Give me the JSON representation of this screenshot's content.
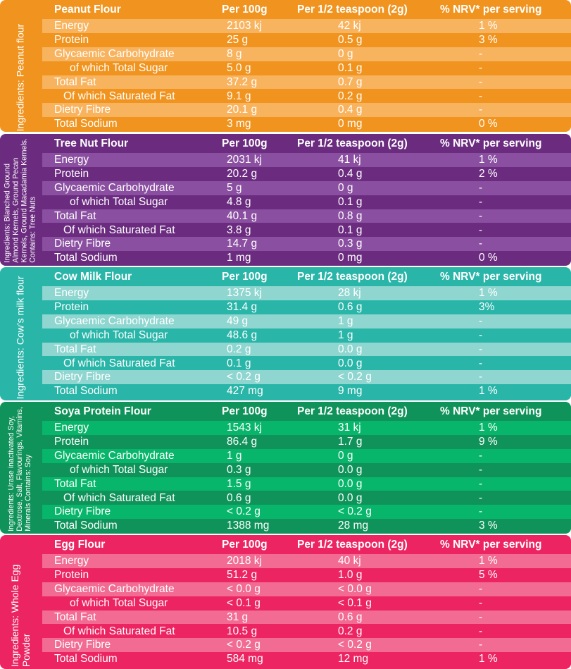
{
  "colors": {
    "peanut": {
      "bg": "#f0941f",
      "row_light": "#f8b35f",
      "row_dark": "#f0941f"
    },
    "treenut": {
      "bg": "#6b2c80",
      "row_light": "#8a4fa0",
      "row_dark": "#6b2c80"
    },
    "cow": {
      "bg": "#29b5a8",
      "row_light": "#8fd6d0",
      "row_dark": "#29b5a8"
    },
    "soya": {
      "bg": "#10935a",
      "row_light": "#07b66a",
      "row_dark": "#10935a"
    },
    "egg": {
      "bg": "#ec2462",
      "row_light": "#f26b93",
      "row_dark": "#ec2462"
    }
  },
  "columns": {
    "per100": "Per 100g",
    "perServing": "Per 1/2 teaspoon (2g)",
    "nrv": "% NRV* per serving"
  },
  "sections": [
    {
      "id": "peanut",
      "title": "Peanut Flour",
      "ingredients": "Ingredients: Peanut flour",
      "rows": [
        {
          "label": "Energy",
          "indent": 0,
          "v1": "2103 kj",
          "v2": "42 kj",
          "v3": "1 %"
        },
        {
          "label": "Protein",
          "indent": 0,
          "v1": "25 g",
          "v2": "0.5 g",
          "v3": "3 %"
        },
        {
          "label": "Glycaemic Carbohydrate",
          "indent": 0,
          "v1": "8 g",
          "v2": "0 g",
          "v3": "-"
        },
        {
          "label": "of which Total Sugar",
          "indent": 1,
          "v1": "5.0 g",
          "v2": "0.1 g",
          "v3": "-"
        },
        {
          "label": "Total Fat",
          "indent": 0,
          "v1": "37.2 g",
          "v2": "0.7 g",
          "v3": "-"
        },
        {
          "label": "Of which Saturated Fat",
          "indent": 2,
          "v1": "9.1 g",
          "v2": "0.2 g",
          "v3": "-"
        },
        {
          "label": "Dietry Fibre",
          "indent": 0,
          "v1": "20.1 g",
          "v2": "0.4 g",
          "v3": "-"
        },
        {
          "label": "Total Sodium",
          "indent": 0,
          "v1": "3 mg",
          "v2": "0 mg",
          "v3": "0 %"
        }
      ]
    },
    {
      "id": "treenut",
      "title": "Tree Nut Flour",
      "ingredients": "Ingredients: Blanched Ground Almond Kernels, Ground Pecan Kernels, Ground Macadamia Kernels. Contains: Tree Nuts",
      "rows": [
        {
          "label": "Energy",
          "indent": 0,
          "v1": "2031 kj",
          "v2": "41 kj",
          "v3": "1 %"
        },
        {
          "label": "Protein",
          "indent": 0,
          "v1": "20.2 g",
          "v2": "0.4 g",
          "v3": "2 %"
        },
        {
          "label": "Glycaemic Carbohydrate",
          "indent": 0,
          "v1": "5 g",
          "v2": "0 g",
          "v3": "-"
        },
        {
          "label": "of which Total Sugar",
          "indent": 1,
          "v1": "4.8 g",
          "v2": "0.1 g",
          "v3": "-"
        },
        {
          "label": "Total Fat",
          "indent": 0,
          "v1": "40.1 g",
          "v2": "0.8 g",
          "v3": "-"
        },
        {
          "label": "Of which Saturated Fat",
          "indent": 2,
          "v1": "3.8 g",
          "v2": "0.1 g",
          "v3": "-"
        },
        {
          "label": "Dietry Fibre",
          "indent": 0,
          "v1": "14.7 g",
          "v2": "0.3 g",
          "v3": "-"
        },
        {
          "label": "Total Sodium",
          "indent": 0,
          "v1": "1 mg",
          "v2": "0 mg",
          "v3": "0 %"
        }
      ]
    },
    {
      "id": "cow",
      "title": "Cow Milk Flour",
      "ingredients": "Ingredients: Cow’s milk flour",
      "rows": [
        {
          "label": "Energy",
          "indent": 0,
          "v1": "1375 kj",
          "v2": "28 kj",
          "v3": "1 %"
        },
        {
          "label": "Protein",
          "indent": 0,
          "v1": "31.4 g",
          "v2": "0.6 g",
          "v3": "3%"
        },
        {
          "label": "Glycaemic Carbohydrate",
          "indent": 0,
          "v1": "49 g",
          "v2": "1 g",
          "v3": "-"
        },
        {
          "label": "of which Total Sugar",
          "indent": 1,
          "v1": "48.6 g",
          "v2": "1 g",
          "v3": "-"
        },
        {
          "label": "Total Fat",
          "indent": 0,
          "v1": "0.2 g",
          "v2": "0.0 g",
          "v3": "-"
        },
        {
          "label": "Of which Saturated Fat",
          "indent": 2,
          "v1": "0.1 g",
          "v2": "0.0 g",
          "v3": "-"
        },
        {
          "label": "Dietry Fibre",
          "indent": 0,
          "v1": "< 0.2 g",
          "v2": "< 0.2 g",
          "v3": "-"
        },
        {
          "label": "Total Sodium",
          "indent": 0,
          "v1": "427 mg",
          "v2": "9 mg",
          "v3": "1 %"
        }
      ]
    },
    {
      "id": "soya",
      "title": "Soya Protein Flour",
      "ingredients": "Ingredients: Urase inactivated Soy, Dextrose, Salt, Flavourings, Vitamins, Minerals Contains: Soy",
      "rows": [
        {
          "label": "Energy",
          "indent": 0,
          "v1": "1543 kj",
          "v2": "31 kj",
          "v3": "1 %"
        },
        {
          "label": "Protein",
          "indent": 0,
          "v1": "86.4 g",
          "v2": "1.7 g",
          "v3": "9 %"
        },
        {
          "label": "Glycaemic Carbohydrate",
          "indent": 0,
          "v1": "1 g",
          "v2": "0 g",
          "v3": "-"
        },
        {
          "label": "of which Total Sugar",
          "indent": 1,
          "v1": "0.3 g",
          "v2": "0.0 g",
          "v3": "-"
        },
        {
          "label": "Total Fat",
          "indent": 0,
          "v1": "1.5 g",
          "v2": "0.0 g",
          "v3": "-"
        },
        {
          "label": "Of which Saturated Fat",
          "indent": 2,
          "v1": "0.6 g",
          "v2": "0.0 g",
          "v3": "-"
        },
        {
          "label": "Dietry Fibre",
          "indent": 0,
          "v1": "< 0.2 g",
          "v2": "< 0.2 g",
          "v3": "-"
        },
        {
          "label": "Total Sodium",
          "indent": 0,
          "v1": "1388 mg",
          "v2": "28 mg",
          "v3": "3 %"
        }
      ]
    },
    {
      "id": "egg",
      "title": "Egg Flour",
      "ingredients": "Ingredients: Whole Egg Powder",
      "rows": [
        {
          "label": "Energy",
          "indent": 0,
          "v1": "2018 kj",
          "v2": "40 kj",
          "v3": "1 %"
        },
        {
          "label": "Protein",
          "indent": 0,
          "v1": "51.2 g",
          "v2": "1.0 g",
          "v3": "5 %"
        },
        {
          "label": "Glycaemic Carbohydrate",
          "indent": 0,
          "v1": "< 0.0 g",
          "v2": "< 0.0 g",
          "v3": "-"
        },
        {
          "label": "of which Total Sugar",
          "indent": 1,
          "v1": "< 0.1 g",
          "v2": "< 0.1 g",
          "v3": "-"
        },
        {
          "label": "Total Fat",
          "indent": 0,
          "v1": "31 g",
          "v2": "0.6 g",
          "v3": "-"
        },
        {
          "label": "Of which Saturated Fat",
          "indent": 2,
          "v1": "10.5 g",
          "v2": "0.2 g",
          "v3": "-"
        },
        {
          "label": "Dietry Fibre",
          "indent": 0,
          "v1": "< 0.2 g",
          "v2": "< 0.2 g",
          "v3": "-"
        },
        {
          "label": "Total Sodium",
          "indent": 0,
          "v1": "584 mg",
          "v2": "12 mg",
          "v3": "1 %"
        }
      ]
    }
  ]
}
